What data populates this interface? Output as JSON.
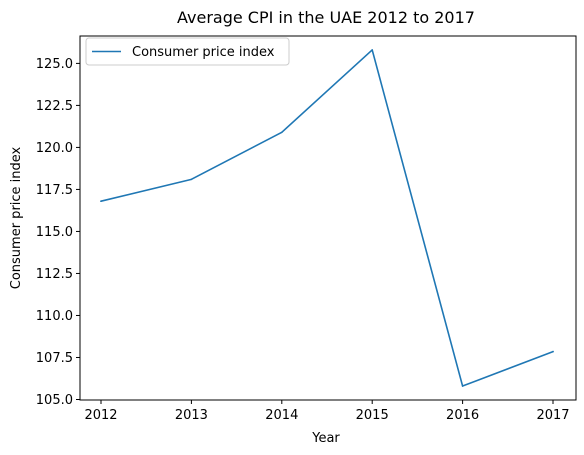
{
  "chart_data": {
    "type": "line",
    "title": "Average CPI in the UAE 2012 to 2017",
    "xlabel": "Year",
    "ylabel": "Consumer price index",
    "x": [
      "2012",
      "2013",
      "2014",
      "2015",
      "2016",
      "2017"
    ],
    "series": [
      {
        "name": "Consumer price index",
        "values": [
          116.8,
          118.1,
          120.9,
          125.8,
          105.8,
          107.85
        ],
        "color": "#1f77b4"
      }
    ],
    "ylim": [
      104.97,
      126.63
    ],
    "yticks": [
      "105.0",
      "107.5",
      "110.0",
      "112.5",
      "115.0",
      "117.5",
      "120.0",
      "122.5",
      "125.0"
    ],
    "grid": false,
    "legend_position": "top-left"
  }
}
